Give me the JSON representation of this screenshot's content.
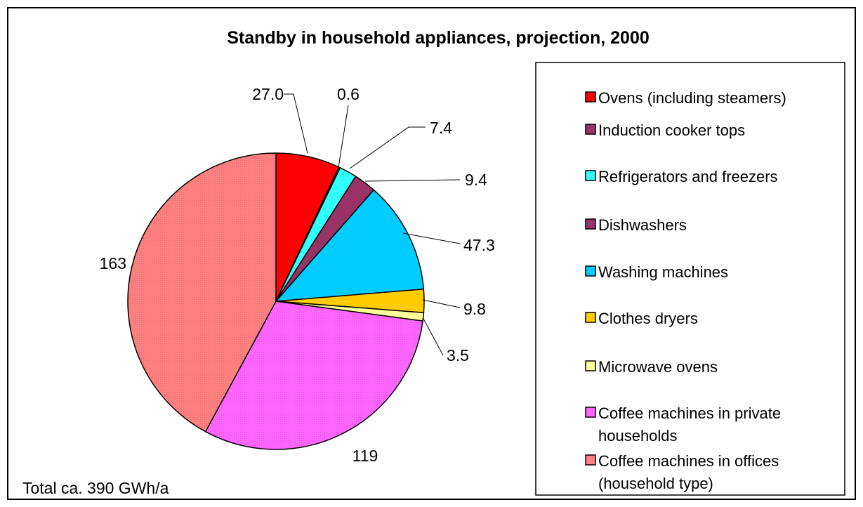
{
  "chart_data": {
    "type": "pie",
    "title": "Standby in household appliances, projection, 2000",
    "note": "Total ca. 390 GWh/a",
    "legend_position": "right",
    "slices": [
      {
        "name": "Ovens (including steamers)",
        "legend_lines": [
          "Ovens (including steamers)"
        ],
        "value": 27.0,
        "label": "27.0",
        "color": "#ff0000"
      },
      {
        "name": "Induction cooker tops",
        "legend_lines": [
          "Induction cooker tops"
        ],
        "value": 0.6,
        "label": "0.6",
        "color": "#993366"
      },
      {
        "name": "Refrigerators and freezers",
        "legend_lines": [
          "Refrigerators and freezers"
        ],
        "value": 7.4,
        "label": "7.4",
        "color": "#33ffff"
      },
      {
        "name": "Dishwashers",
        "legend_lines": [
          "Dishwashers"
        ],
        "value": 9.4,
        "label": "9.4",
        "color": "#993366"
      },
      {
        "name": "Washing machines",
        "legend_lines": [
          "Washing machines"
        ],
        "value": 47.3,
        "label": "47.3",
        "color": "#00ccff"
      },
      {
        "name": "Clothes dryers",
        "legend_lines": [
          "Clothes dryers"
        ],
        "value": 9.8,
        "label": "9.8",
        "color": "#ffcc00"
      },
      {
        "name": "Microwave ovens",
        "legend_lines": [
          "Microwave ovens"
        ],
        "value": 3.5,
        "label": "3.5",
        "color": "#ffff99"
      },
      {
        "name": "Coffee machines in private households",
        "legend_lines": [
          "Coffee machines in private",
          "households"
        ],
        "value": 119,
        "label": "119",
        "color": "#ff66ff"
      },
      {
        "name": "Coffee machines in offices (household type)",
        "legend_lines": [
          "Coffee machines in offices",
          "(household type)"
        ],
        "value": 163,
        "label": "163",
        "color": "#ff8080"
      }
    ]
  }
}
